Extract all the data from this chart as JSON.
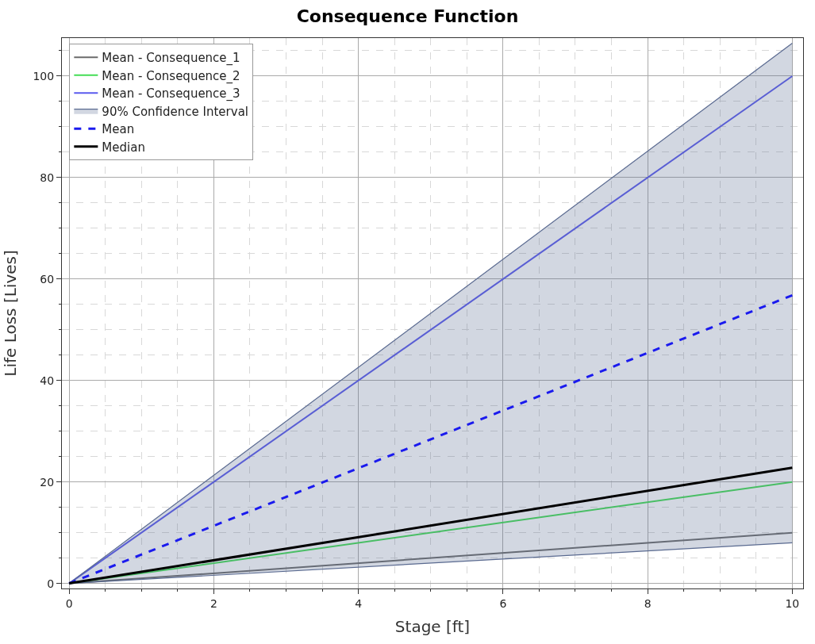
{
  "chart_data": {
    "type": "line",
    "title": "Consequence Function",
    "xlabel": "Stage [ft]",
    "ylabel": "Life Loss [Lives]",
    "x": [
      0,
      10
    ],
    "series": [
      {
        "name": "Mean - Consequence_1",
        "color": "#6b6b6b",
        "values": [
          0,
          10
        ]
      },
      {
        "name": "Mean - Consequence_2",
        "color": "#44dd55",
        "values": [
          0,
          20
        ]
      },
      {
        "name": "Mean - Consequence_3",
        "color": "#5a5aee",
        "values": [
          0,
          100
        ]
      },
      {
        "color": "#5a6a90",
        "values": [
          0,
          8
        ]
      },
      {
        "name": "90% Confidence Interval",
        "type": "area",
        "color": "#5a6a90",
        "values": [
          0,
          106.5
        ]
      },
      {
        "name": "Mean",
        "color": "#1a1aee",
        "values": [
          0,
          56.8
        ],
        "line_style": "dashed"
      },
      {
        "name": "Median",
        "color": "#000000",
        "values": [
          0,
          22.8
        ]
      }
    ],
    "xlim": [
      -0.1,
      10.15
    ],
    "ylim": [
      -1,
      107.5
    ],
    "xticks": [
      0,
      2,
      4,
      6,
      8,
      10
    ],
    "yticks": [
      0,
      20,
      40,
      60,
      80,
      100
    ],
    "grid": true,
    "legend": "top left",
    "marker": "none",
    "line_style": "solid"
  }
}
